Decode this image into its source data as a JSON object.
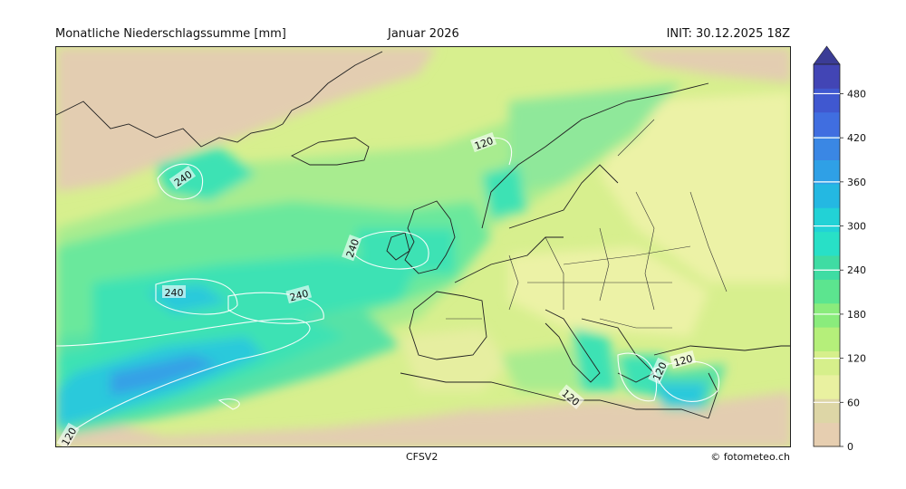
{
  "header": {
    "left": "Monatliche Niederschlagssumme [mm]",
    "center": "Januar 2026",
    "right": "INIT: 30.12.2025 18Z"
  },
  "footer": {
    "model": "CFSV2",
    "credit": "© fotometeo.ch"
  },
  "map": {
    "contour_labels": [
      "240",
      "240",
      "240",
      "240",
      "120",
      "120",
      "120",
      "120",
      "120"
    ],
    "colors": {
      "land_dry": "#e3cdb1",
      "very_low": "#ecf2a6",
      "low": "#d7ef8e",
      "medium": "#a8ec8f",
      "med_high": "#6ae89c",
      "high": "#3ee2b4",
      "very_high": "#2bc9db",
      "extreme": "#35a0e6"
    }
  },
  "colorbar": {
    "tick_labels": [
      "0",
      "60",
      "120",
      "180",
      "240",
      "300",
      "360",
      "420",
      "480"
    ],
    "colors": [
      "#e6ceb0",
      "#ddd6a6",
      "#e9f1a0",
      "#d6ef8b",
      "#b5ef7a",
      "#8aec7c",
      "#5ce58f",
      "#3fdca3",
      "#28e0c7",
      "#22d2d6",
      "#24b8e2",
      "#2fa0e6",
      "#3a87e4",
      "#406ee0",
      "#4058d0",
      "#4245b5"
    ],
    "max_value": 520
  }
}
